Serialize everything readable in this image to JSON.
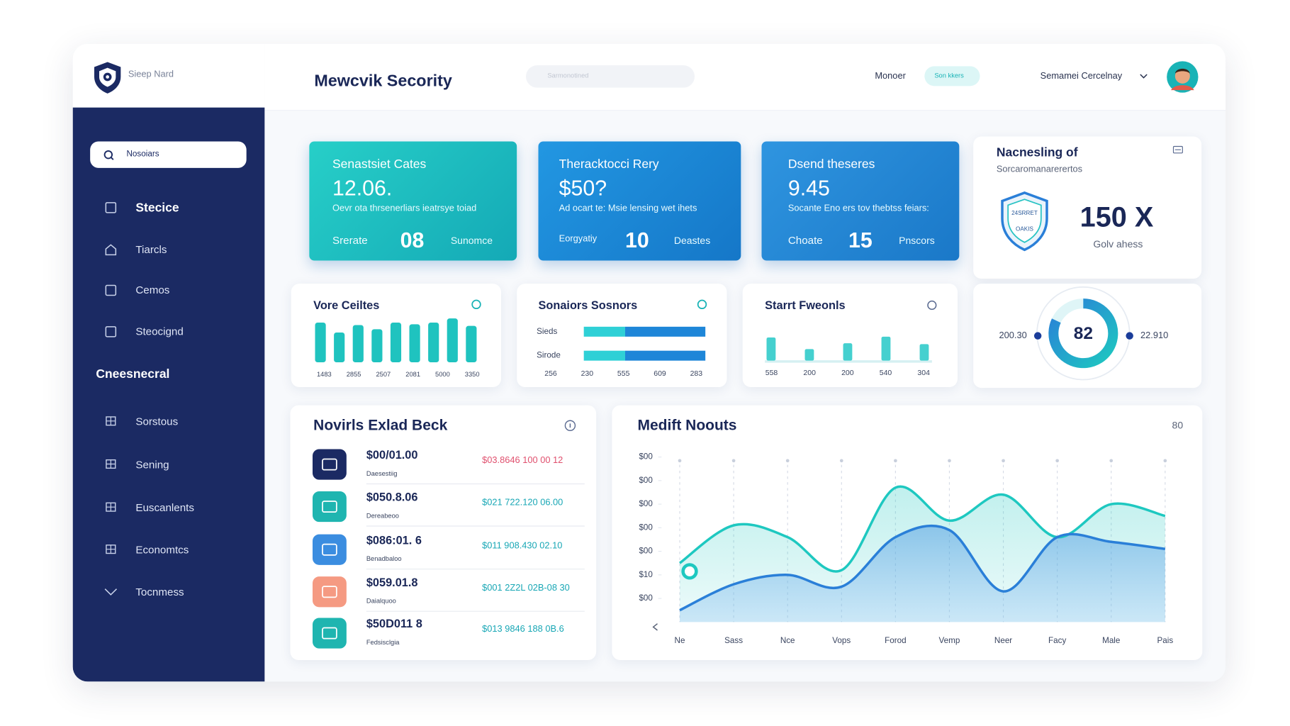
{
  "brand": "Sieep Nard",
  "header": {
    "title": "Mewcvik Secority",
    "search_placeholder": "Sarmonotined",
    "nav": [
      "Monoer",
      "Son kkers"
    ],
    "user": "Semamei Cercelnay"
  },
  "sidebar": {
    "search": "Nosoiars",
    "items": [
      "Stecice",
      "Tiarcls",
      "Cemos",
      "Steocignd"
    ],
    "section": "Cneesnecral",
    "items2": [
      "Sorstous",
      "Sening",
      "Euscanlents",
      "Economtcs",
      "Tocnmess"
    ]
  },
  "stat_cards": [
    {
      "title": "Senastsiet Cates",
      "value": "12.06.",
      "desc": "Oevr ota thrsenerliars ieatrsye toiad",
      "left": "Srerate",
      "count": "08",
      "right": "Sunomce"
    },
    {
      "title": "Theracktocci Rery",
      "value": "$50?",
      "desc": "Ad ocart te: Msie lensing wet ihets",
      "left": "Eorgyatiy",
      "count": "10",
      "right": "Deastes"
    },
    {
      "title": "Dsend theseres",
      "value": "9.45",
      "desc": "Socante Eno ers tov thebtss feiars:",
      "left": "Choate",
      "count": "15",
      "right": "Pnscors"
    }
  ],
  "shield_card": {
    "title": "Nacnesling of",
    "subtitle": "Sorcaromanarerertos",
    "badge": [
      "24SRRET",
      "OAKIS"
    ],
    "value": "150 X",
    "caption": "Golv ahess"
  },
  "donut": {
    "value": 82,
    "left": "200.30",
    "right": "22.910"
  },
  "bar_card": {
    "title": "Vore Ceiltes",
    "values": [
      48,
      36,
      45,
      40,
      48,
      46,
      48,
      53,
      44
    ],
    "ylim": [
      0,
      60
    ],
    "axis_labels": [
      "1483",
      "2855",
      "2507",
      "2081",
      "5000",
      "3350"
    ]
  },
  "hbar_card": {
    "title": "Sonaiors Sosnors",
    "rows": [
      {
        "label": "Sieds",
        "values": [
          34,
          66
        ]
      },
      {
        "label": "Sirode",
        "values": [
          34,
          66
        ]
      }
    ],
    "colors": [
      "#2fd0d6",
      "#1e86d8"
    ],
    "xlim": [
      0,
      100
    ],
    "axis_labels": [
      "256",
      "230",
      "555",
      "609",
      "283"
    ]
  },
  "col_card": {
    "title": "Starrt Fweonls",
    "values": [
      28,
      14,
      21,
      29,
      20
    ],
    "ylim": [
      0,
      40
    ],
    "axis_labels": [
      "558",
      "200",
      "200",
      "540",
      "304"
    ]
  },
  "transactions": {
    "title": "Novirls Exlad Beck",
    "rows": [
      {
        "amount": "$00/01.00",
        "sub": "Daesestiig",
        "detail": "$03.8646 100 00 12"
      },
      {
        "amount": "$050.8.06",
        "sub": "Dereabeoo",
        "detail": "$021 722.120 06.00"
      },
      {
        "amount": "$086:01. 6",
        "sub": "Benadbaloo",
        "detail": "$011 908.430 02.10"
      },
      {
        "amount": "$059.01.8",
        "sub": "Daialquoo",
        "detail": "$001 2Z2L 02B-08 30"
      },
      {
        "amount": "$50D011 8",
        "sub": "Fedsisclgia",
        "detail": "$013 9846 188 0B.6"
      }
    ]
  },
  "line_chart": {
    "type": "line",
    "title": "Medift Noouts",
    "corner": "80",
    "categories": [
      "Ne",
      "Sass",
      "Nce",
      "Vops",
      "Forod",
      "Vemp",
      "Neer",
      "Facy",
      "Male",
      "Pais"
    ],
    "ylim": [
      0,
      7
    ],
    "yticks": [
      {
        "value": 7,
        "label": "$00"
      },
      {
        "value": 6,
        "label": "$00"
      },
      {
        "value": 5,
        "label": "$00"
      },
      {
        "value": 4,
        "label": "$00"
      },
      {
        "value": 3,
        "label": "$00"
      },
      {
        "value": 2,
        "label": "$10"
      },
      {
        "value": 1,
        "label": "$00"
      }
    ],
    "series": [
      {
        "color": "#1ec8c0",
        "values": [
          2.5,
          4.1,
          3.6,
          2.2,
          5.7,
          4.3,
          5.4,
          3.6,
          5.0,
          4.5
        ]
      },
      {
        "color": "#2a7fd8",
        "values": [
          0.5,
          1.6,
          2.0,
          1.5,
          3.6,
          3.9,
          1.3,
          3.6,
          3.4,
          3.1
        ]
      }
    ]
  }
}
